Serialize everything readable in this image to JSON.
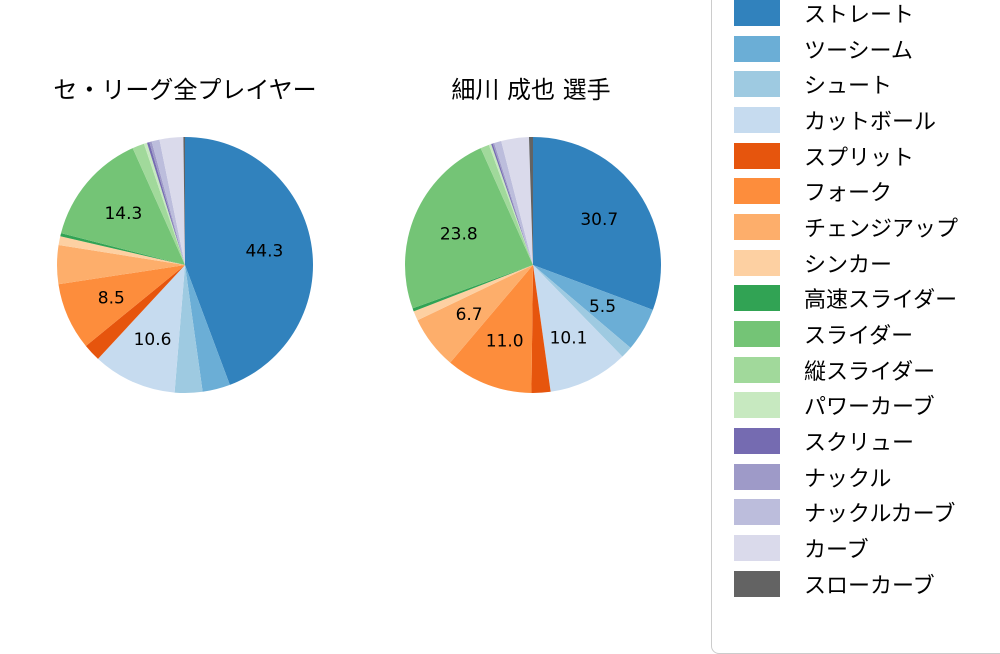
{
  "chart_data": [
    {
      "type": "pie",
      "title": "セ・リーグ全プレイヤー",
      "start_angle": "top",
      "direction": "clockwise",
      "label_threshold": 5,
      "slices": [
        {
          "name": "ストレート",
          "value": 44.3,
          "color": "#3182bd",
          "label": "44.3"
        },
        {
          "name": "ツーシーム",
          "value": 3.5,
          "color": "#6baed6",
          "label": ""
        },
        {
          "name": "シュート",
          "value": 3.5,
          "color": "#9ecae1",
          "label": ""
        },
        {
          "name": "カットボール",
          "value": 10.6,
          "color": "#c6dbef",
          "label": "10.6"
        },
        {
          "name": "スプリット",
          "value": 2.2,
          "color": "#e6550d",
          "label": ""
        },
        {
          "name": "フォーク",
          "value": 8.5,
          "color": "#fd8d3c",
          "label": "8.5"
        },
        {
          "name": "チェンジアップ",
          "value": 4.9,
          "color": "#fdae6b",
          "label": ""
        },
        {
          "name": "シンカー",
          "value": 1.1,
          "color": "#fdd0a2",
          "label": ""
        },
        {
          "name": "高速スライダー",
          "value": 0.4,
          "color": "#31a354",
          "label": ""
        },
        {
          "name": "スライダー",
          "value": 14.3,
          "color": "#74c476",
          "label": "14.3"
        },
        {
          "name": "縦スライダー",
          "value": 1.5,
          "color": "#a1d99b",
          "label": ""
        },
        {
          "name": "パワーカーブ",
          "value": 0.4,
          "color": "#c7e9c0",
          "label": ""
        },
        {
          "name": "スクリュー",
          "value": 0.3,
          "color": "#756bb1",
          "label": ""
        },
        {
          "name": "ナックル",
          "value": 0.3,
          "color": "#9e9ac8",
          "label": ""
        },
        {
          "name": "ナックルカーブ",
          "value": 1.0,
          "color": "#bcbddc",
          "label": ""
        },
        {
          "name": "カーブ",
          "value": 3.0,
          "color": "#dadaeb",
          "label": ""
        },
        {
          "name": "スローカーブ",
          "value": 0.2,
          "color": "#636363",
          "label": ""
        }
      ]
    },
    {
      "type": "pie",
      "title": "細川 成也  選手",
      "start_angle": "top",
      "direction": "clockwise",
      "label_threshold": 5,
      "slices": [
        {
          "name": "ストレート",
          "value": 30.7,
          "color": "#3182bd",
          "label": "30.7"
        },
        {
          "name": "ツーシーム",
          "value": 5.5,
          "color": "#6baed6",
          "label": "5.5"
        },
        {
          "name": "シュート",
          "value": 1.5,
          "color": "#9ecae1",
          "label": ""
        },
        {
          "name": "カットボール",
          "value": 10.1,
          "color": "#c6dbef",
          "label": "10.1"
        },
        {
          "name": "スプリット",
          "value": 2.4,
          "color": "#e6550d",
          "label": ""
        },
        {
          "name": "フォーク",
          "value": 11.0,
          "color": "#fd8d3c",
          "label": "11.0"
        },
        {
          "name": "チェンジアップ",
          "value": 6.7,
          "color": "#fdae6b",
          "label": "6.7"
        },
        {
          "name": "シンカー",
          "value": 1.2,
          "color": "#fdd0a2",
          "label": ""
        },
        {
          "name": "高速スライダー",
          "value": 0.4,
          "color": "#31a354",
          "label": ""
        },
        {
          "name": "スライダー",
          "value": 23.8,
          "color": "#74c476",
          "label": "23.8"
        },
        {
          "name": "縦スライダー",
          "value": 1.1,
          "color": "#a1d99b",
          "label": ""
        },
        {
          "name": "パワーカーブ",
          "value": 0.3,
          "color": "#c7e9c0",
          "label": ""
        },
        {
          "name": "スクリュー",
          "value": 0.2,
          "color": "#756bb1",
          "label": ""
        },
        {
          "name": "ナックル",
          "value": 0.2,
          "color": "#9e9ac8",
          "label": ""
        },
        {
          "name": "ナックルカーブ",
          "value": 0.9,
          "color": "#bcbddc",
          "label": ""
        },
        {
          "name": "カーブ",
          "value": 3.5,
          "color": "#dadaeb",
          "label": ""
        },
        {
          "name": "スローカーブ",
          "value": 0.5,
          "color": "#636363",
          "label": ""
        }
      ]
    }
  ],
  "legend": {
    "items": [
      {
        "label": "ストレート",
        "color": "#3182bd"
      },
      {
        "label": "ツーシーム",
        "color": "#6baed6"
      },
      {
        "label": "シュート",
        "color": "#9ecae1"
      },
      {
        "label": "カットボール",
        "color": "#c6dbef"
      },
      {
        "label": "スプリット",
        "color": "#e6550d"
      },
      {
        "label": "フォーク",
        "color": "#fd8d3c"
      },
      {
        "label": "チェンジアップ",
        "color": "#fdae6b"
      },
      {
        "label": "シンカー",
        "color": "#fdd0a2"
      },
      {
        "label": "高速スライダー",
        "color": "#31a354"
      },
      {
        "label": "スライダー",
        "color": "#74c476"
      },
      {
        "label": "縦スライダー",
        "color": "#a1d99b"
      },
      {
        "label": "パワーカーブ",
        "color": "#c7e9c0"
      },
      {
        "label": "スクリュー",
        "color": "#756bb1"
      },
      {
        "label": "ナックル",
        "color": "#9e9ac8"
      },
      {
        "label": "ナックルカーブ",
        "color": "#bcbddc"
      },
      {
        "label": "カーブ",
        "color": "#dadaeb"
      },
      {
        "label": "スローカーブ",
        "color": "#636363"
      }
    ]
  }
}
